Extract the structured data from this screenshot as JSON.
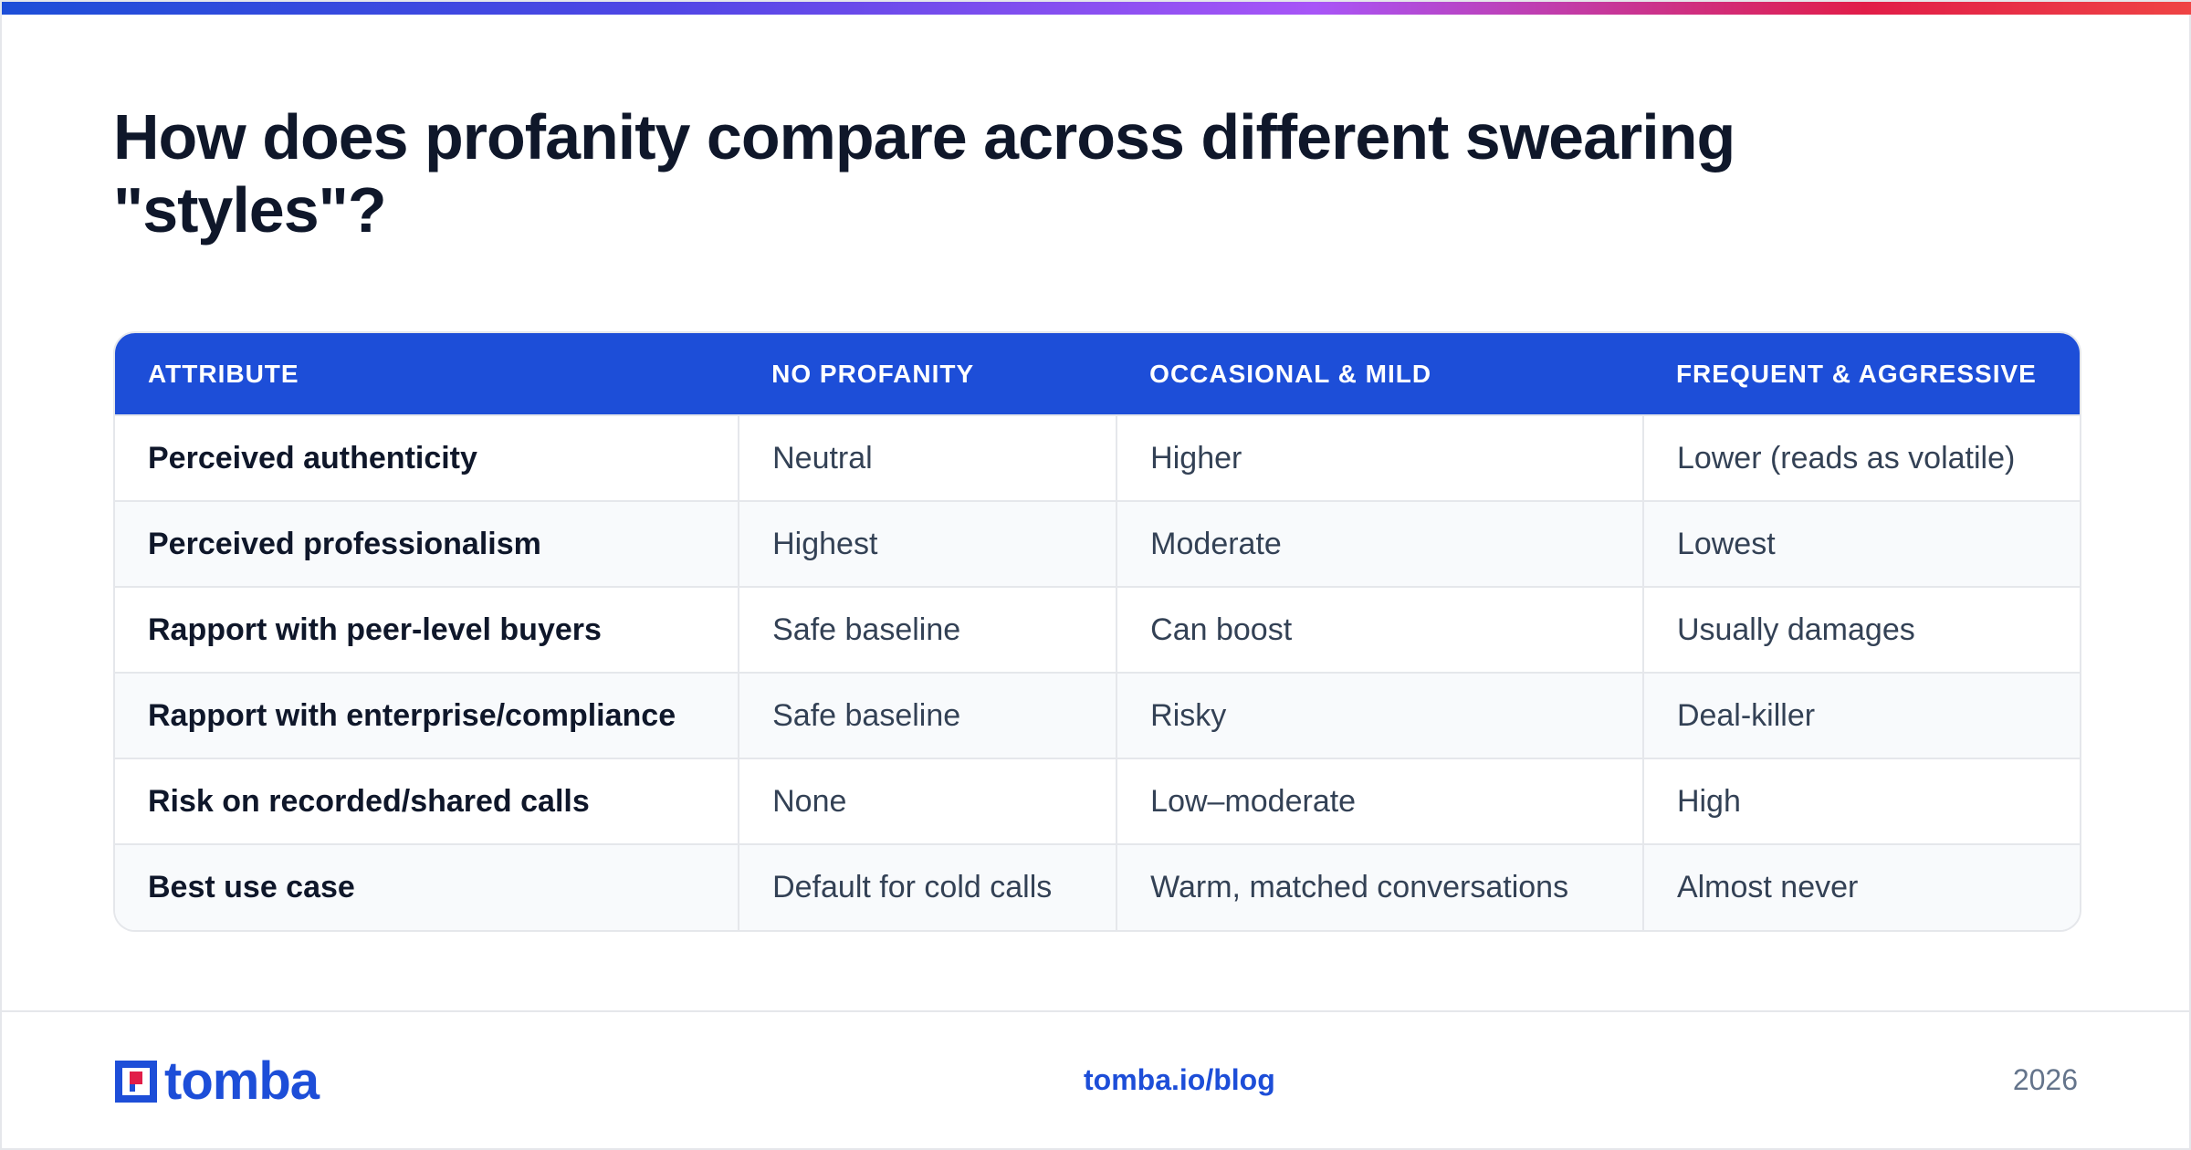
{
  "title": "How does profanity compare across different swearing \"styles\"?",
  "table": {
    "headers": [
      "ATTRIBUTE",
      "NO PROFANITY",
      "OCCASIONAL & MILD",
      "FREQUENT & AGGRESSIVE"
    ],
    "rows": [
      [
        "Perceived authenticity",
        "Neutral",
        "Higher",
        "Lower (reads as volatile)"
      ],
      [
        "Perceived professionalism",
        "Highest",
        "Moderate",
        "Lowest"
      ],
      [
        "Rapport with peer-level buyers",
        "Safe baseline",
        "Can boost",
        "Usually damages"
      ],
      [
        "Rapport with enterprise/compliance",
        "Safe baseline",
        "Risky",
        "Deal-killer"
      ],
      [
        "Risk on recorded/shared calls",
        "None",
        "Low–moderate",
        "High"
      ],
      [
        "Best use case",
        "Default for cold calls",
        "Warm, matched conversations",
        "Almost never"
      ]
    ]
  },
  "footer": {
    "logo_text": "tomba",
    "link": "tomba.io/blog",
    "year": "2026"
  },
  "colors": {
    "accent": "#1d4ed8",
    "logo_red": "#e11d48",
    "title": "#0f172a",
    "row_alt": "#f8fafc"
  },
  "icons": {
    "logo_mark": "tomba-logo-mark"
  }
}
